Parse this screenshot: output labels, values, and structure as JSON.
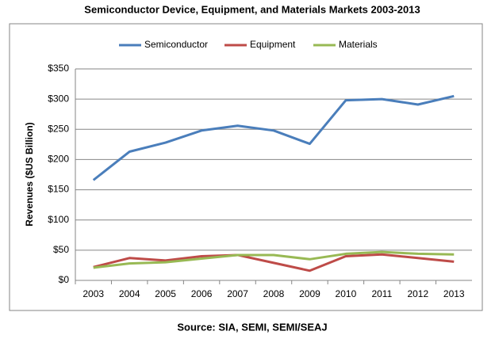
{
  "chart_data": {
    "type": "line",
    "title": "Semiconductor Device, Equipment, and Materials Markets 2003-2013",
    "y_label": "Revenues ($US Billion)",
    "source": "Source: SIA, SEMI, SEMI/SEAJ",
    "categories": [
      "2003",
      "2004",
      "2005",
      "2006",
      "2007",
      "2008",
      "2009",
      "2010",
      "2011",
      "2012",
      "2013"
    ],
    "series": [
      {
        "name": "Semiconductor",
        "color": "#4a7ebb",
        "values": [
          166,
          213,
          228,
          248,
          256,
          248,
          226,
          298,
          300,
          291,
          305
        ]
      },
      {
        "name": "Equipment",
        "color": "#be4b48",
        "values": [
          22,
          37,
          33,
          40,
          42,
          29,
          16,
          40,
          43,
          37,
          31
        ]
      },
      {
        "name": "Materials",
        "color": "#98b954",
        "values": [
          21,
          28,
          30,
          36,
          42,
          42,
          35,
          44,
          47,
          44,
          43
        ]
      }
    ],
    "ylim": [
      0,
      350
    ],
    "yticks": [
      {
        "value": 0,
        "label": "$0"
      },
      {
        "value": 50,
        "label": "$50"
      },
      {
        "value": 100,
        "label": "$100"
      },
      {
        "value": 150,
        "label": "$150"
      },
      {
        "value": 200,
        "label": "$200"
      },
      {
        "value": 250,
        "label": "$250"
      },
      {
        "value": 300,
        "label": "$300"
      },
      {
        "value": 350,
        "label": "$350"
      }
    ],
    "grid": true,
    "legend": "top"
  }
}
